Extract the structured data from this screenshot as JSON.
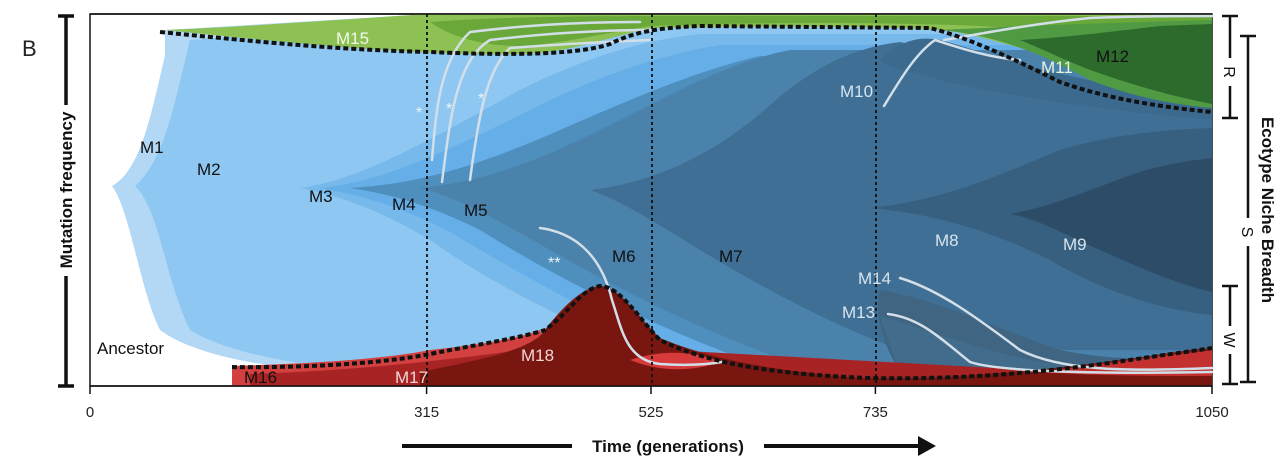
{
  "panel_label": "B",
  "chart_data": {
    "type": "area",
    "subtype": "muller-plot",
    "title": "",
    "xlabel": "Time (generations)",
    "ylabel": "Mutation frequency",
    "right_label": "Ecotype Niche Breadth",
    "x_ticks": [
      0,
      315,
      525,
      735,
      1050
    ],
    "xlim": [
      0,
      1050
    ],
    "ylim": [
      0,
      1
    ],
    "vertical_lines_at": [
      315,
      525,
      735
    ],
    "ecotype_brackets": [
      "R",
      "S",
      "W"
    ],
    "ancestor_label": "Ancestor",
    "annotations": [
      "*",
      "*",
      "*",
      "**"
    ],
    "mutations": [
      {
        "name": "M1",
        "color": "#b3d8f5"
      },
      {
        "name": "M2",
        "color": "#8ec8f2"
      },
      {
        "name": "M3",
        "color": "#77b9ea"
      },
      {
        "name": "M4",
        "color": "#65aee8"
      },
      {
        "name": "M5",
        "color": "#4f8fbe"
      },
      {
        "name": "M6",
        "color": "#4a82ac"
      },
      {
        "name": "M7",
        "color": "#3f6f94"
      },
      {
        "name": "M8",
        "color": "#365f80"
      },
      {
        "name": "M9",
        "color": "#2c4c68"
      },
      {
        "name": "M10",
        "color": "#3b6a8e"
      },
      {
        "name": "M11",
        "color": "#4f9a43"
      },
      {
        "name": "M12",
        "color": "#2d6b2d"
      },
      {
        "name": "M13",
        "color": "#426c8c"
      },
      {
        "name": "M14",
        "color": "#3f6583"
      },
      {
        "name": "M15",
        "color": "#8dc153"
      },
      {
        "name": "M16",
        "color": "#d24040"
      },
      {
        "name": "M17",
        "color": "#a82424"
      },
      {
        "name": "M18",
        "color": "#7a1610"
      }
    ]
  }
}
